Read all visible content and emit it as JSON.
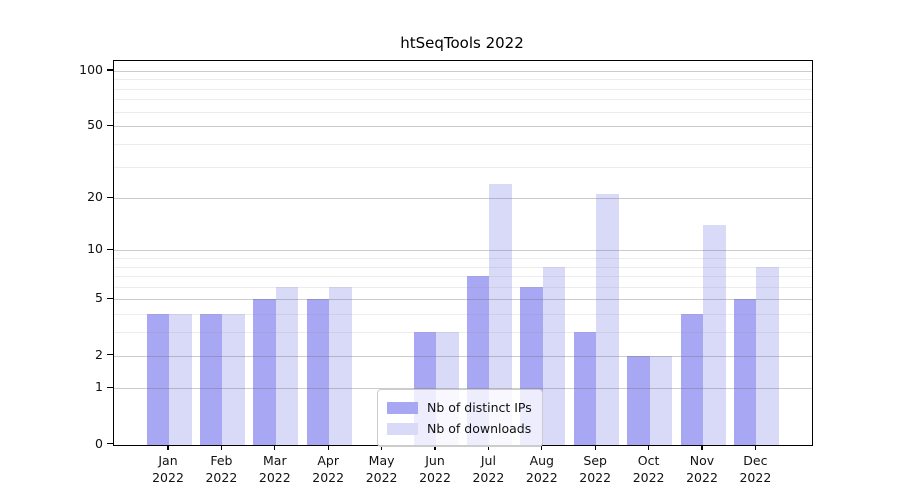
{
  "chart_data": {
    "type": "bar",
    "title": "htSeqTools 2022",
    "categories": [
      "Jan",
      "Feb",
      "Mar",
      "Apr",
      "May",
      "Jun",
      "Jul",
      "Aug",
      "Sep",
      "Oct",
      "Nov",
      "Dec"
    ],
    "year": "2022",
    "series": [
      {
        "name": "Nb of distinct IPs",
        "color": "#a7a7f3",
        "values": [
          4,
          4,
          5,
          5,
          0,
          3,
          7,
          6,
          3,
          2,
          4,
          5
        ]
      },
      {
        "name": "Nb of downloads",
        "color": "#d9d9f8",
        "values": [
          4,
          4,
          6,
          6,
          0,
          3,
          24,
          8,
          21,
          2,
          14,
          8
        ]
      }
    ],
    "scale": "log10(1+x)",
    "ylim": [
      0,
      113
    ],
    "y_major_ticks": [
      0,
      1,
      2,
      5,
      10,
      20,
      50,
      100
    ],
    "y_minor_gridlines": [
      3,
      4,
      6,
      7,
      8,
      9,
      30,
      40,
      60,
      70,
      80,
      90
    ],
    "grid": true,
    "legend_position": "lower center"
  },
  "colors": {
    "spine": "#000000",
    "major_grid": "#cccccc",
    "minor_grid": "#ebebeb",
    "background": "#ffffff"
  }
}
